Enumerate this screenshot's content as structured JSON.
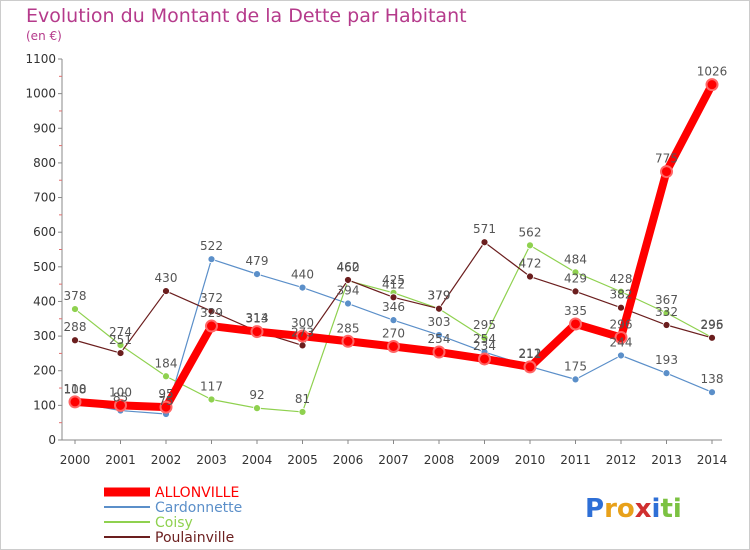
{
  "chart_data": {
    "type": "line",
    "title": "Evolution du Montant de la Dette par Habitant",
    "unit_label": "(en €)",
    "xlabel": "",
    "ylabel": "",
    "ylim": [
      0,
      1100
    ],
    "yticks": [
      0,
      100,
      200,
      300,
      400,
      500,
      600,
      700,
      800,
      900,
      1000,
      1100
    ],
    "grid": false,
    "legend_position": "bottom-left",
    "categories": [
      "2000",
      "2001",
      "2002",
      "2003",
      "2004",
      "2005",
      "2006",
      "2007",
      "2008",
      "2009",
      "2010",
      "2011",
      "2012",
      "2013",
      "2014"
    ],
    "series": [
      {
        "name": "ALLONVILLE",
        "color": "#ff0000",
        "values": [
          110,
          100,
          95,
          329,
          313,
          300,
          285,
          270,
          254,
          234,
          211,
          335,
          296,
          775,
          1026
        ]
      },
      {
        "name": "Cardonnette",
        "color": "#5b8fc9",
        "values": [
          108,
          85,
          75,
          522,
          479,
          440,
          394,
          346,
          303,
          254,
          212,
          175,
          244,
          193,
          138
        ]
      },
      {
        "name": "Coisy",
        "color": "#8fd14f",
        "values": [
          378,
          274,
          184,
          117,
          92,
          81,
          460,
          425,
          379,
          295,
          562,
          484,
          428,
          367,
          296
        ]
      },
      {
        "name": "Poulainville",
        "color": "#6b1e1e",
        "values": [
          288,
          251,
          430,
          372,
          314,
          273,
          462,
          412,
          379,
          571,
          472,
          429,
          382,
          332,
          295
        ]
      }
    ]
  },
  "logo": {
    "letters": [
      "P",
      "r",
      "o",
      "x",
      "i",
      "t",
      "i"
    ],
    "colors": [
      "#2e6fd6",
      "#e8a11a",
      "#e8a11a",
      "#d02f2f",
      "#2e6fd6",
      "#7cc242",
      "#7cc242"
    ]
  }
}
